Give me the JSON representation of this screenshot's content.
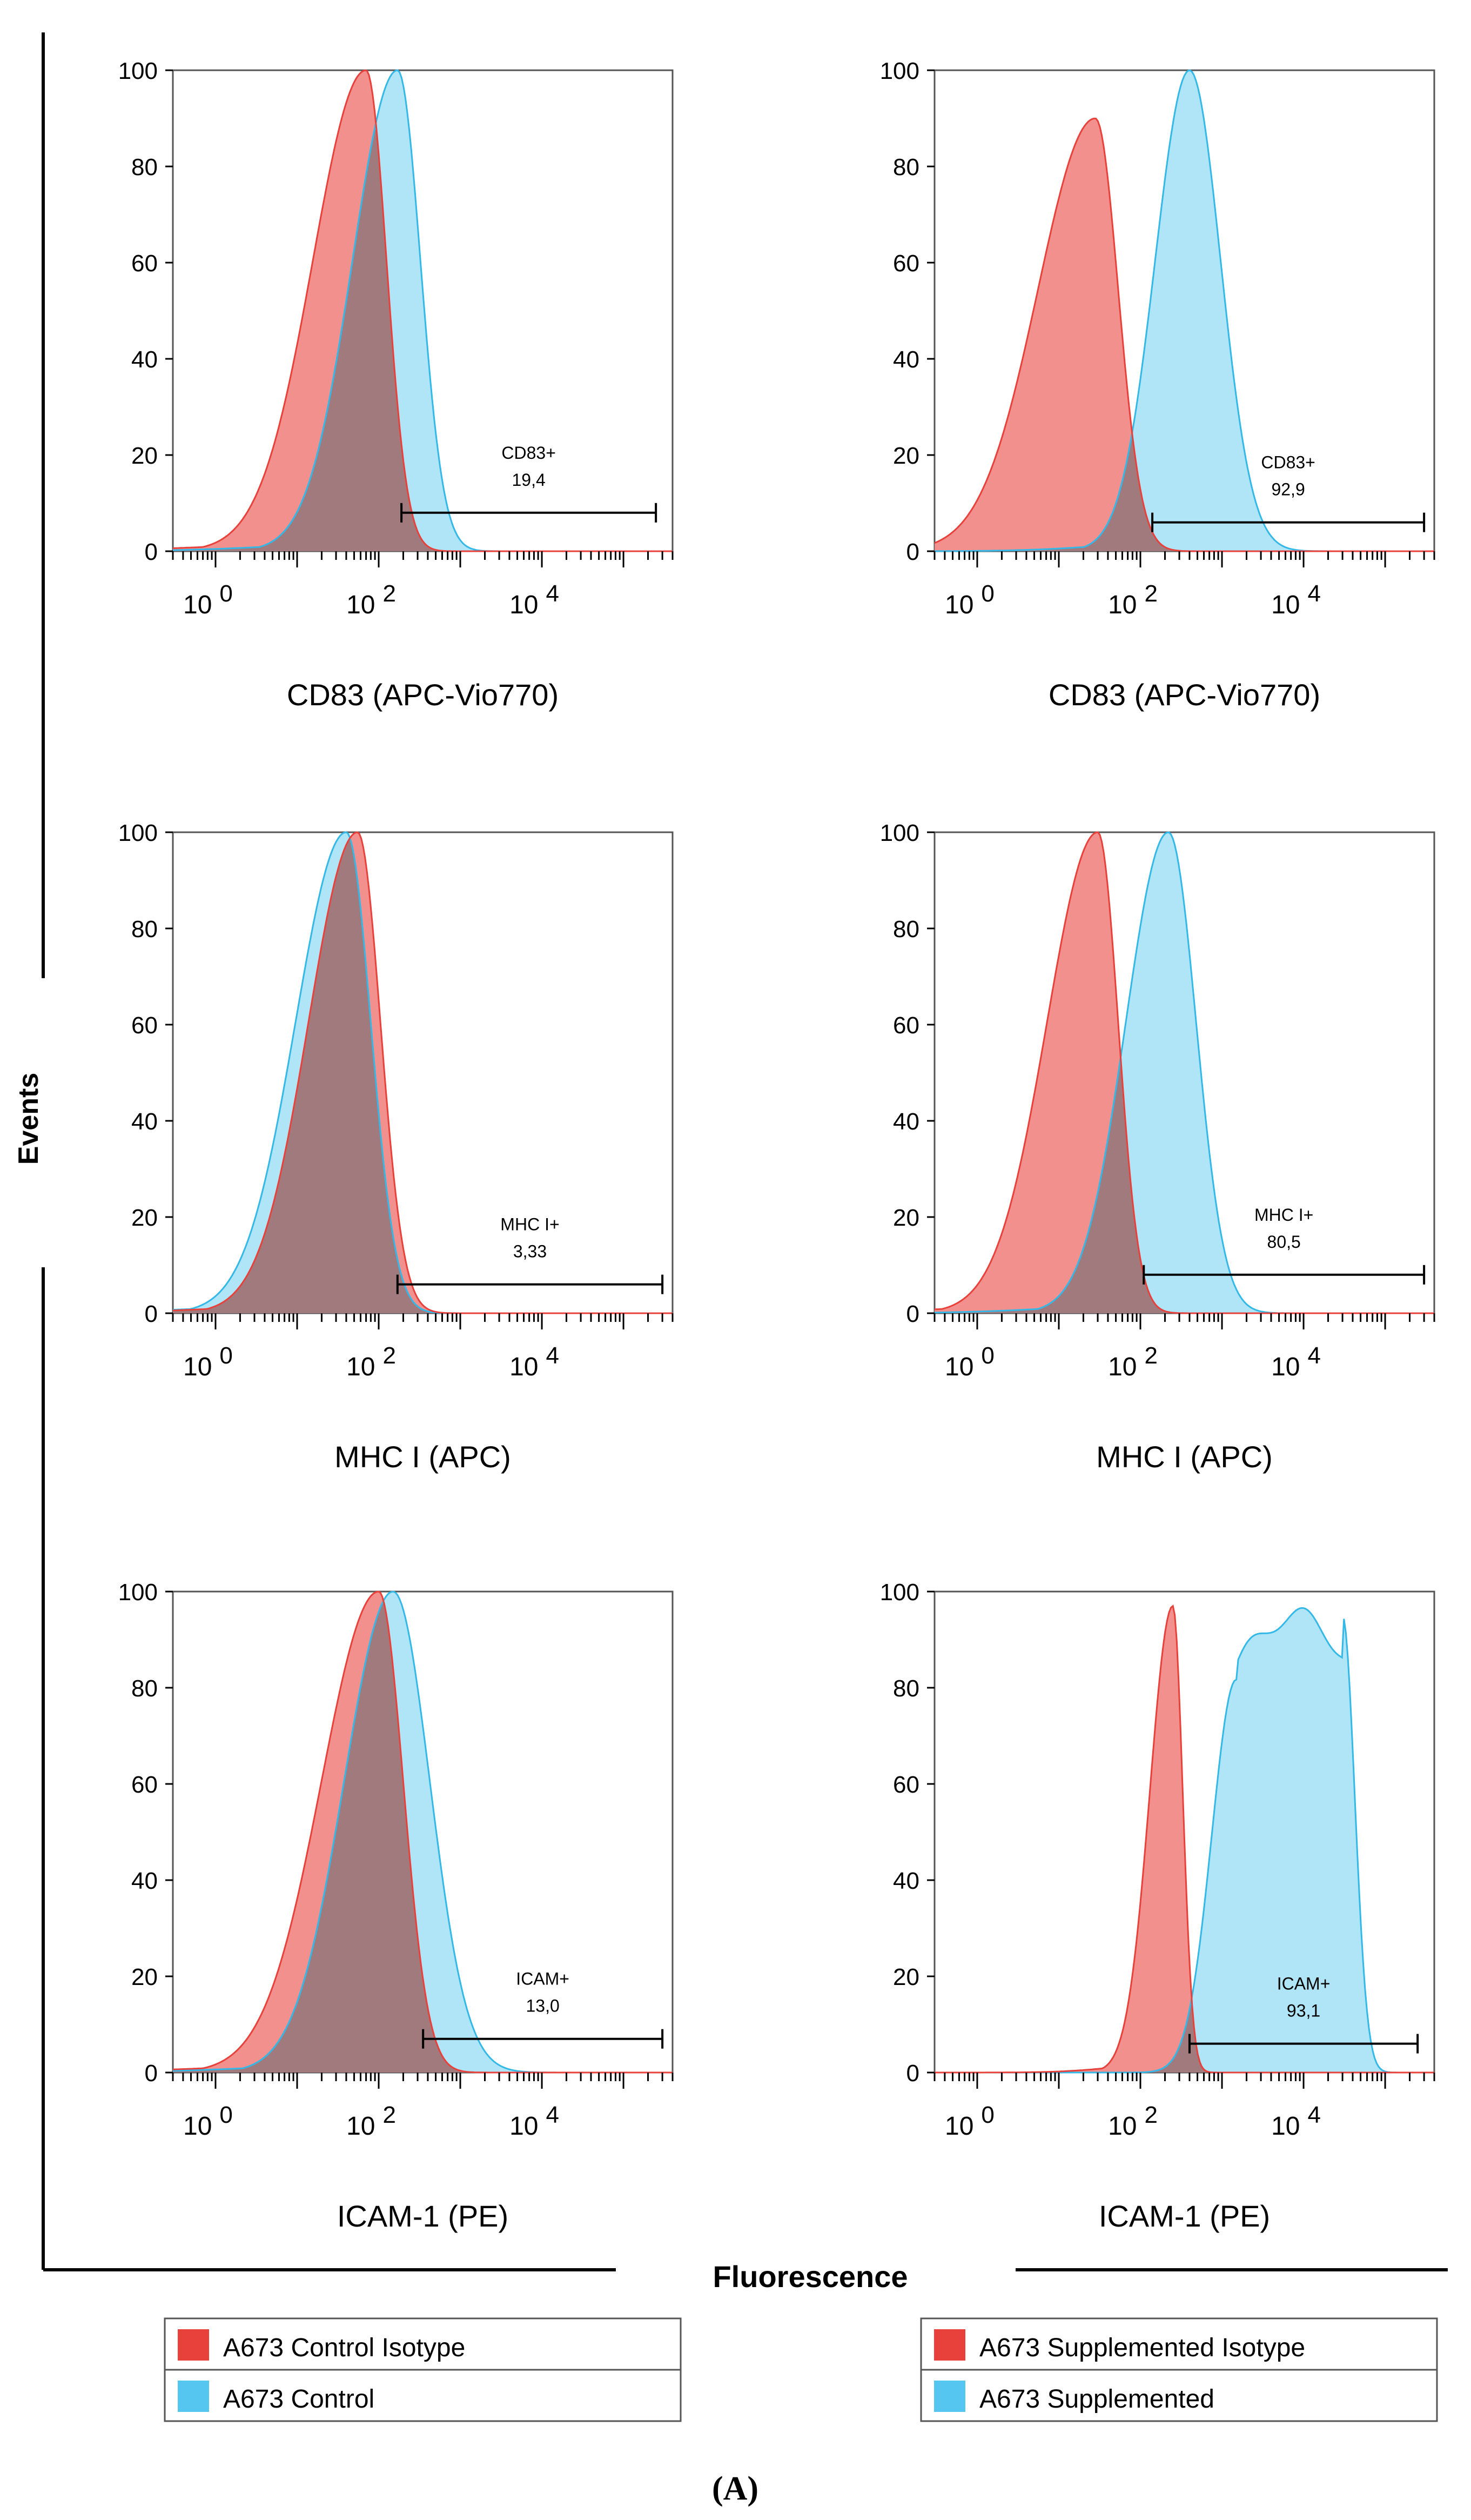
{
  "figure": {
    "panel_label": "(A)",
    "y_axis_label": "Events",
    "x_axis_label": "Fluorescence"
  },
  "colors": {
    "isotype_fill": "#f08a86",
    "isotype_stroke": "#e8413b",
    "stained_fill": "#a8e3f5",
    "stained_stroke": "#33b8e8",
    "overlap_fill": "#a07478",
    "legend_isotype_swatch": "#e8413b",
    "legend_stained_swatch": "#55c6f0"
  },
  "legends": [
    {
      "items": [
        {
          "label": "A673 Control Isotype",
          "color": "#e8413b"
        },
        {
          "label": "A673 Control",
          "color": "#55c6f0"
        }
      ]
    },
    {
      "items": [
        {
          "label": "A673 Supplemented Isotype",
          "color": "#e8413b"
        },
        {
          "label": "A673 Supplemented",
          "color": "#55c6f0"
        }
      ]
    }
  ],
  "chart_data": [
    {
      "type": "area",
      "panel": "row1-left",
      "xlabel": "CD83 (APC-Vio770)",
      "x_scale": "log",
      "xlim": [
        0.3,
        400000
      ],
      "ylim": [
        0,
        100
      ],
      "x_ticks": [
        "10 0",
        "10 2",
        "10 4"
      ],
      "y_ticks": [
        0,
        20,
        40,
        60,
        80,
        100
      ],
      "gate": {
        "name": "CD83+",
        "value": "19,4",
        "x_range": [
          190,
          250000
        ],
        "y": 8
      },
      "series": [
        {
          "name": "A673 Control Isotype",
          "role": "isotype",
          "peak": 70,
          "peak_y": 100,
          "sigma_left": 0.65,
          "sigma_right": 0.25
        },
        {
          "name": "A673 Control",
          "role": "stained",
          "peak": 170,
          "peak_y": 100,
          "sigma_left": 0.55,
          "sigma_right": 0.28
        }
      ]
    },
    {
      "type": "area",
      "panel": "row1-right",
      "xlabel": "CD83 (APC-Vio770)",
      "x_scale": "log",
      "xlim": [
        0.3,
        400000
      ],
      "ylim": [
        0,
        100
      ],
      "x_ticks": [
        "10 0",
        "10 2",
        "10 4"
      ],
      "y_ticks": [
        0,
        20,
        40,
        60,
        80,
        100
      ],
      "gate": {
        "name": "CD83+",
        "value": "92,9",
        "x_range": [
          140,
          300000
        ],
        "y": 6
      },
      "series": [
        {
          "name": "A673 Supplemented Isotype",
          "role": "isotype",
          "peak": 28,
          "peak_y": 90,
          "sigma_left": 0.7,
          "sigma_right": 0.28
        },
        {
          "name": "A673 Supplemented",
          "role": "stained",
          "peak": 400,
          "peak_y": 100,
          "sigma_left": 0.42,
          "sigma_right": 0.38
        }
      ]
    },
    {
      "type": "area",
      "panel": "row2-left",
      "xlabel": "MHC I (APC)",
      "x_scale": "log",
      "xlim": [
        0.3,
        400000
      ],
      "ylim": [
        0,
        100
      ],
      "x_ticks": [
        "10 0",
        "10 2",
        "10 4"
      ],
      "y_ticks": [
        0,
        20,
        40,
        60,
        80,
        100
      ],
      "gate": {
        "name": "MHC I+",
        "value": "3,33",
        "x_range": [
          170,
          300000
        ],
        "y": 6
      },
      "series": [
        {
          "name": "A673 Control Isotype",
          "role": "isotype",
          "peak": 55,
          "peak_y": 100,
          "sigma_left": 0.6,
          "sigma_right": 0.28
        },
        {
          "name": "A673 Control",
          "role": "stained",
          "peak": 40,
          "peak_y": 100,
          "sigma_left": 0.62,
          "sigma_right": 0.3
        }
      ]
    },
    {
      "type": "area",
      "panel": "row2-right",
      "xlabel": "MHC I (APC)",
      "x_scale": "log",
      "xlim": [
        0.3,
        400000
      ],
      "ylim": [
        0,
        100
      ],
      "x_ticks": [
        "10 0",
        "10 2",
        "10 4"
      ],
      "y_ticks": [
        0,
        20,
        40,
        60,
        80,
        100
      ],
      "gate": {
        "name": "MHC I+",
        "value": "80,5",
        "x_range": [
          110,
          300000
        ],
        "y": 8
      },
      "series": [
        {
          "name": "A673 Supplemented Isotype",
          "role": "isotype",
          "peak": 30,
          "peak_y": 100,
          "sigma_left": 0.62,
          "sigma_right": 0.25
        },
        {
          "name": "A673 Supplemented",
          "role": "stained",
          "peak": 220,
          "peak_y": 100,
          "sigma_left": 0.52,
          "sigma_right": 0.34
        }
      ]
    },
    {
      "type": "area",
      "panel": "row3-left",
      "xlabel": "ICAM-1 (PE)",
      "x_scale": "log",
      "xlim": [
        0.3,
        400000
      ],
      "ylim": [
        0,
        100
      ],
      "x_ticks": [
        "10 0",
        "10 2",
        "10 4"
      ],
      "y_ticks": [
        0,
        20,
        40,
        60,
        80,
        100
      ],
      "gate": {
        "name": "ICAM+",
        "value": "13,0",
        "x_range": [
          350,
          300000
        ],
        "y": 7
      },
      "series": [
        {
          "name": "A673 Control Isotype",
          "role": "isotype",
          "peak": 100,
          "peak_y": 100,
          "sigma_left": 0.7,
          "sigma_right": 0.3
        },
        {
          "name": "A673 Control",
          "role": "stained",
          "peak": 150,
          "peak_y": 100,
          "sigma_left": 0.6,
          "sigma_right": 0.45
        }
      ]
    },
    {
      "type": "area",
      "panel": "row3-right",
      "xlabel": "ICAM-1 (PE)",
      "x_scale": "log",
      "xlim": [
        0.3,
        400000
      ],
      "ylim": [
        0,
        100
      ],
      "x_ticks": [
        "10 0",
        "10 2",
        "10 4"
      ],
      "y_ticks": [
        0,
        20,
        40,
        60,
        80,
        100
      ],
      "gate": {
        "name": "ICAM+",
        "value": "93,1",
        "x_range": [
          400,
          250000
        ],
        "y": 6
      },
      "series": [
        {
          "name": "A673 Supplemented Isotype",
          "role": "isotype",
          "peak": 250,
          "peak_y": 97,
          "sigma_left": 0.28,
          "sigma_right": 0.12
        },
        {
          "name": "A673 Supplemented",
          "role": "stained",
          "role_shape": "plateau",
          "peak": 12000,
          "peak_y": 95,
          "plateau_left": 1500,
          "plateau_right": 30000,
          "sigma_left": 0.3,
          "sigma_right": 0.15
        }
      ]
    }
  ]
}
